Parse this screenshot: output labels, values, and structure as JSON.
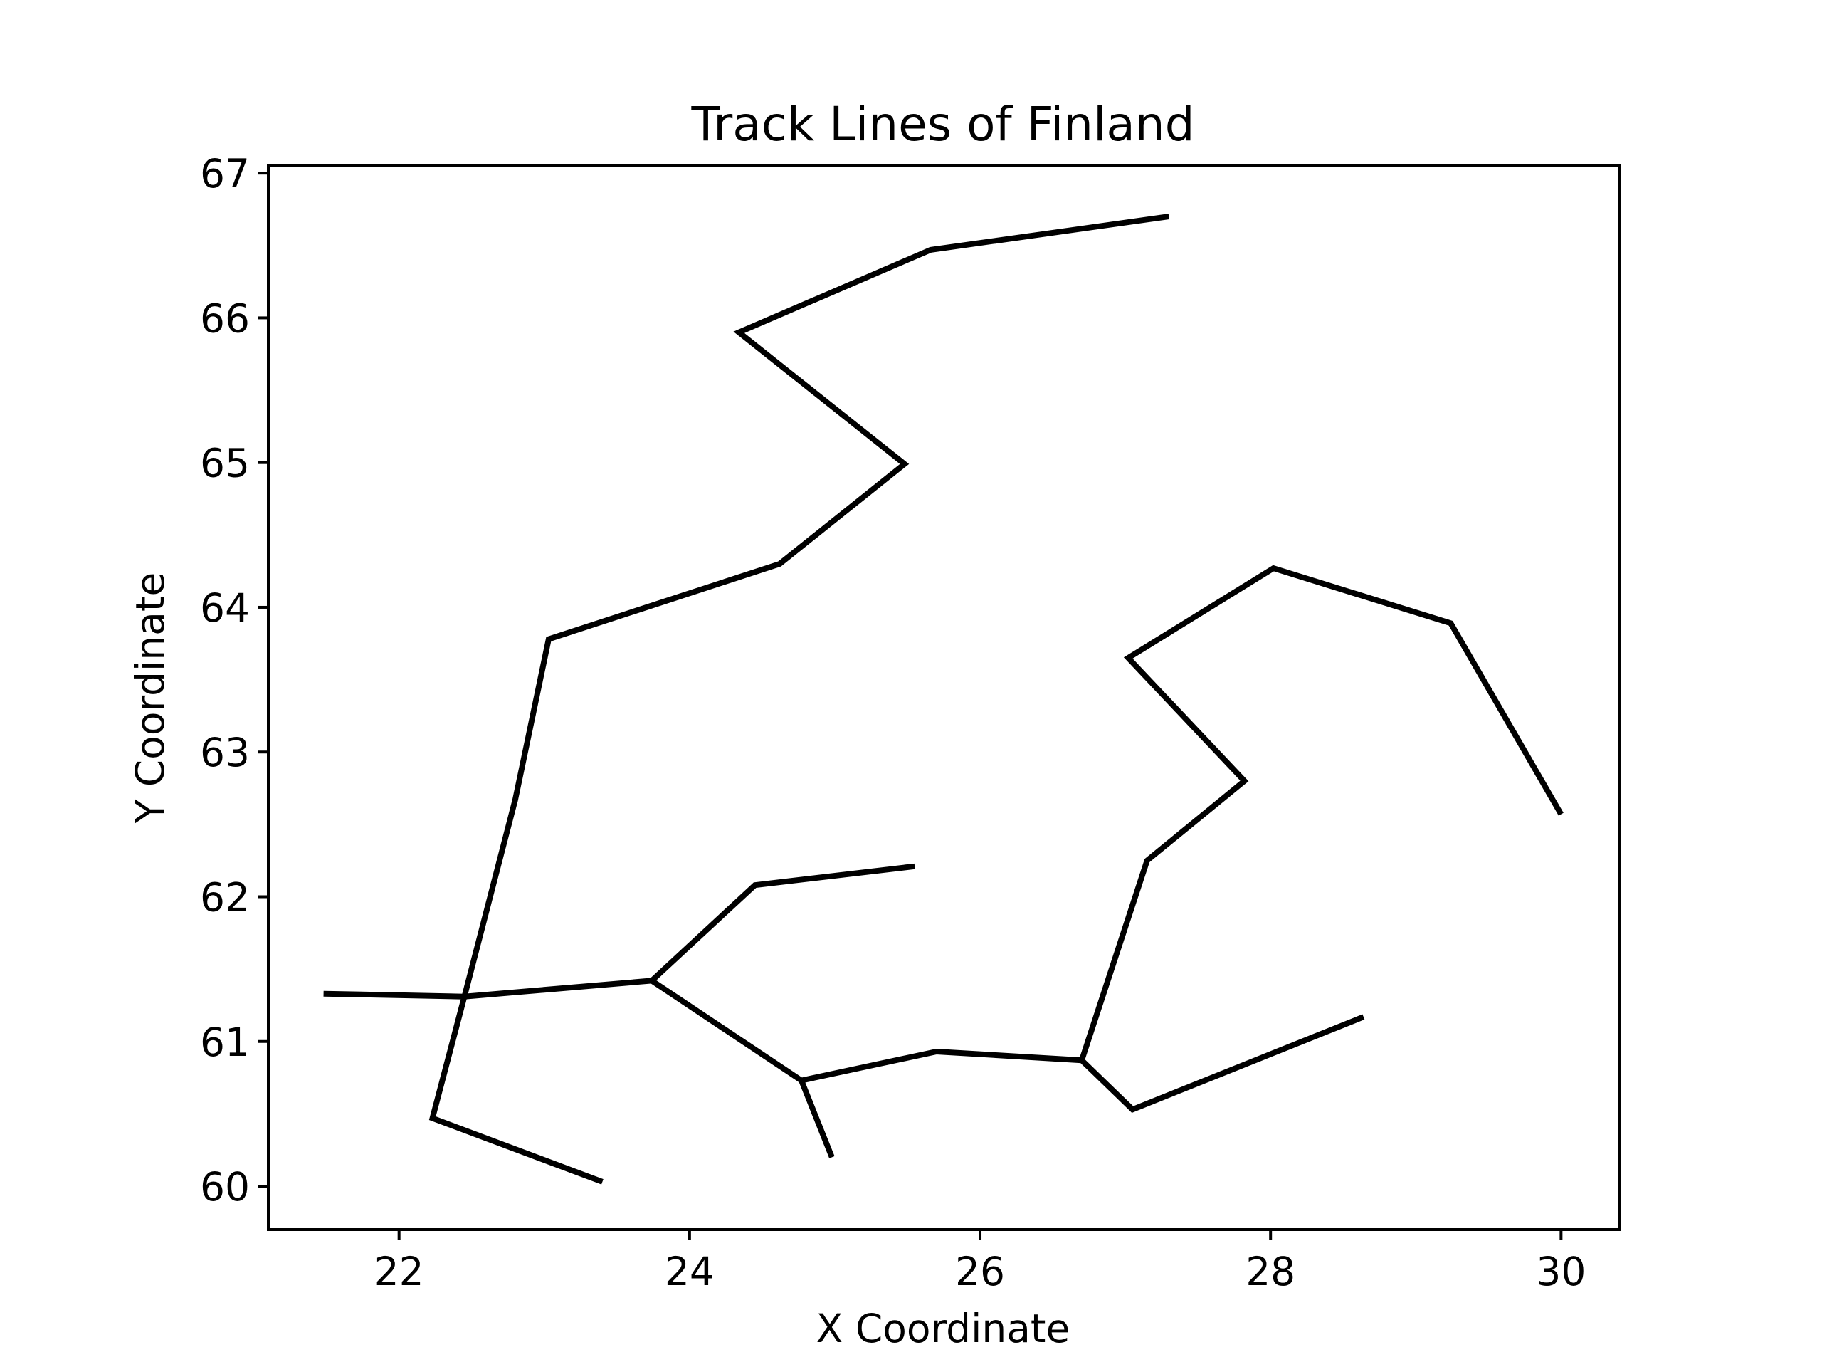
{
  "chart_data": {
    "type": "line",
    "title": "Track Lines of Finland",
    "xlabel": "X Coordinate",
    "ylabel": "Y Coordinate",
    "xlim": [
      21.1,
      30.4
    ],
    "ylim": [
      59.7,
      67.05
    ],
    "xticks": [
      "22",
      "24",
      "26",
      "28",
      "30"
    ],
    "yticks": [
      "60",
      "61",
      "62",
      "63",
      "64",
      "65",
      "66",
      "67"
    ],
    "grid": false,
    "line_color": "#000000",
    "series": [
      {
        "points": [
          [
            23.4,
            60.03
          ],
          [
            22.23,
            60.47
          ],
          [
            22.45,
            61.31
          ],
          [
            22.8,
            62.67
          ],
          [
            23.03,
            63.78
          ],
          [
            24.62,
            64.3
          ],
          [
            25.48,
            64.99
          ],
          [
            24.34,
            65.9
          ],
          [
            25.66,
            66.47
          ],
          [
            27.3,
            66.7
          ]
        ]
      },
      {
        "points": [
          [
            21.48,
            61.33
          ],
          [
            22.45,
            61.31
          ],
          [
            23.74,
            61.42
          ],
          [
            24.45,
            62.08
          ],
          [
            25.55,
            62.21
          ]
        ]
      },
      {
        "points": [
          [
            23.74,
            61.42
          ],
          [
            24.77,
            60.73
          ],
          [
            24.98,
            60.2
          ]
        ]
      },
      {
        "points": [
          [
            24.77,
            60.73
          ],
          [
            25.7,
            60.93
          ],
          [
            26.7,
            60.87
          ],
          [
            27.05,
            60.53
          ],
          [
            28.64,
            61.17
          ]
        ]
      },
      {
        "points": [
          [
            26.7,
            60.87
          ],
          [
            27.15,
            62.25
          ],
          [
            27.82,
            62.8
          ],
          [
            27.02,
            63.65
          ],
          [
            28.02,
            64.27
          ],
          [
            29.24,
            63.89
          ],
          [
            30.0,
            62.57
          ]
        ]
      }
    ]
  }
}
